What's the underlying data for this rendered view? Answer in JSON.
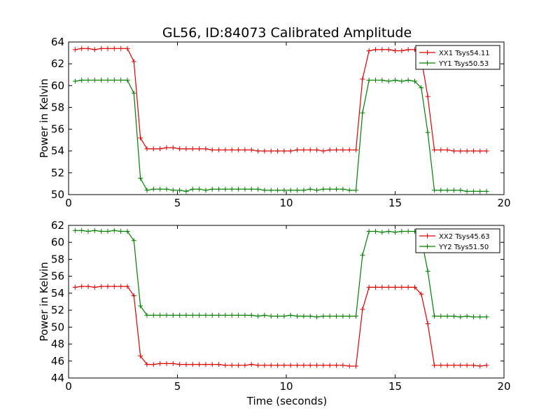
{
  "figure": {
    "title": "GL56, ID:84073 Calibrated Amplitude",
    "xlabel": "Time (seconds)"
  },
  "colors": {
    "xx": "#e00000",
    "yy": "#008000"
  },
  "chart_data": [
    {
      "type": "line",
      "ylabel": "Power in Kelvin",
      "xlim": [
        0,
        20
      ],
      "ylim": [
        50,
        64
      ],
      "xticks": [
        "0",
        "5",
        "10",
        "15",
        "20"
      ],
      "yticks": [
        "50",
        "52",
        "54",
        "56",
        "58",
        "60",
        "62",
        "64"
      ],
      "legend_position": "top-right",
      "x": [
        0.3,
        0.6,
        0.9,
        1.2,
        1.5,
        1.8,
        2.1,
        2.4,
        2.7,
        3.0,
        3.3,
        3.6,
        3.9,
        4.2,
        4.5,
        4.8,
        5.1,
        5.4,
        5.7,
        6.0,
        6.3,
        6.6,
        6.9,
        7.2,
        7.5,
        7.8,
        8.1,
        8.4,
        8.7,
        9.0,
        9.3,
        9.6,
        9.9,
        10.2,
        10.5,
        10.8,
        11.1,
        11.4,
        11.7,
        12.0,
        12.3,
        12.6,
        12.9,
        13.2,
        13.5,
        13.8,
        14.1,
        14.4,
        14.7,
        15.0,
        15.3,
        15.6,
        15.9,
        16.2,
        16.5,
        16.8,
        17.1,
        17.4,
        17.7,
        18.0,
        18.3,
        18.6,
        18.9,
        19.2
      ],
      "series": [
        {
          "name": "XX1 Tsys54.11",
          "color": "#e00000",
          "values": [
            63.3,
            63.4,
            63.4,
            63.3,
            63.4,
            63.4,
            63.4,
            63.4,
            63.4,
            62.2,
            55.2,
            54.2,
            54.2,
            54.2,
            54.3,
            54.3,
            54.2,
            54.2,
            54.2,
            54.2,
            54.2,
            54.1,
            54.1,
            54.1,
            54.1,
            54.1,
            54.1,
            54.1,
            54.0,
            54.0,
            54.0,
            54.0,
            54.0,
            54.0,
            54.1,
            54.1,
            54.1,
            54.1,
            54.0,
            54.1,
            54.1,
            54.1,
            54.1,
            54.1,
            60.6,
            63.2,
            63.3,
            63.3,
            63.3,
            63.2,
            63.2,
            63.3,
            63.3,
            62.5,
            59.0,
            54.1,
            54.1,
            54.1,
            54.0,
            54.0,
            54.0,
            54.0,
            54.0,
            54.0
          ]
        },
        {
          "name": "YY1 Tsys50.53",
          "color": "#008000",
          "values": [
            60.4,
            60.5,
            60.5,
            60.5,
            60.5,
            60.5,
            60.5,
            60.5,
            60.5,
            59.3,
            51.5,
            50.4,
            50.5,
            50.5,
            50.5,
            50.4,
            50.4,
            50.3,
            50.5,
            50.5,
            50.4,
            50.5,
            50.5,
            50.5,
            50.5,
            50.5,
            50.5,
            50.5,
            50.5,
            50.4,
            50.4,
            50.4,
            50.4,
            50.4,
            50.4,
            50.4,
            50.5,
            50.4,
            50.5,
            50.5,
            50.5,
            50.5,
            50.4,
            50.4,
            57.5,
            60.5,
            60.5,
            60.5,
            60.4,
            60.5,
            60.4,
            60.5,
            60.4,
            59.8,
            55.7,
            50.4,
            50.4,
            50.4,
            50.4,
            50.4,
            50.3,
            50.3,
            50.3,
            50.3
          ]
        }
      ]
    },
    {
      "type": "line",
      "ylabel": "Power in Kelvin",
      "xlim": [
        0,
        20
      ],
      "ylim": [
        44,
        62
      ],
      "xticks": [
        "0",
        "5",
        "10",
        "15",
        "20"
      ],
      "yticks": [
        "44",
        "46",
        "48",
        "50",
        "52",
        "54",
        "56",
        "58",
        "60",
        "62"
      ],
      "legend_position": "top-right",
      "x": [
        0.3,
        0.6,
        0.9,
        1.2,
        1.5,
        1.8,
        2.1,
        2.4,
        2.7,
        3.0,
        3.3,
        3.6,
        3.9,
        4.2,
        4.5,
        4.8,
        5.1,
        5.4,
        5.7,
        6.0,
        6.3,
        6.6,
        6.9,
        7.2,
        7.5,
        7.8,
        8.1,
        8.4,
        8.7,
        9.0,
        9.3,
        9.6,
        9.9,
        10.2,
        10.5,
        10.8,
        11.1,
        11.4,
        11.7,
        12.0,
        12.3,
        12.6,
        12.9,
        13.2,
        13.5,
        13.8,
        14.1,
        14.4,
        14.7,
        15.0,
        15.3,
        15.6,
        15.9,
        16.2,
        16.5,
        16.8,
        17.1,
        17.4,
        17.7,
        18.0,
        18.3,
        18.6,
        18.9,
        19.2
      ],
      "series": [
        {
          "name": "XX2 Tsys45.63",
          "color": "#e00000",
          "values": [
            54.7,
            54.8,
            54.8,
            54.7,
            54.8,
            54.8,
            54.8,
            54.8,
            54.8,
            53.7,
            46.6,
            45.6,
            45.6,
            45.7,
            45.7,
            45.7,
            45.6,
            45.6,
            45.6,
            45.6,
            45.6,
            45.6,
            45.6,
            45.5,
            45.5,
            45.5,
            45.5,
            45.6,
            45.5,
            45.5,
            45.5,
            45.5,
            45.5,
            45.5,
            45.5,
            45.5,
            45.5,
            45.5,
            45.5,
            45.5,
            45.5,
            45.5,
            45.4,
            45.4,
            52.1,
            54.7,
            54.7,
            54.7,
            54.7,
            54.7,
            54.7,
            54.7,
            54.7,
            53.9,
            50.4,
            45.5,
            45.5,
            45.5,
            45.5,
            45.5,
            45.5,
            45.5,
            45.4,
            45.5
          ]
        },
        {
          "name": "YY2 Tsys51.50",
          "color": "#008000",
          "values": [
            61.4,
            61.4,
            61.3,
            61.4,
            61.3,
            61.3,
            61.4,
            61.3,
            61.3,
            60.2,
            52.5,
            51.4,
            51.4,
            51.4,
            51.4,
            51.4,
            51.4,
            51.4,
            51.4,
            51.4,
            51.4,
            51.4,
            51.4,
            51.4,
            51.4,
            51.4,
            51.4,
            51.4,
            51.3,
            51.4,
            51.3,
            51.3,
            51.3,
            51.4,
            51.3,
            51.3,
            51.3,
            51.2,
            51.3,
            51.3,
            51.3,
            51.3,
            51.3,
            51.3,
            58.5,
            61.3,
            61.3,
            61.2,
            61.3,
            61.2,
            61.3,
            61.3,
            61.3,
            60.5,
            56.6,
            51.3,
            51.3,
            51.3,
            51.3,
            51.2,
            51.3,
            51.2,
            51.2,
            51.2
          ]
        }
      ]
    }
  ]
}
